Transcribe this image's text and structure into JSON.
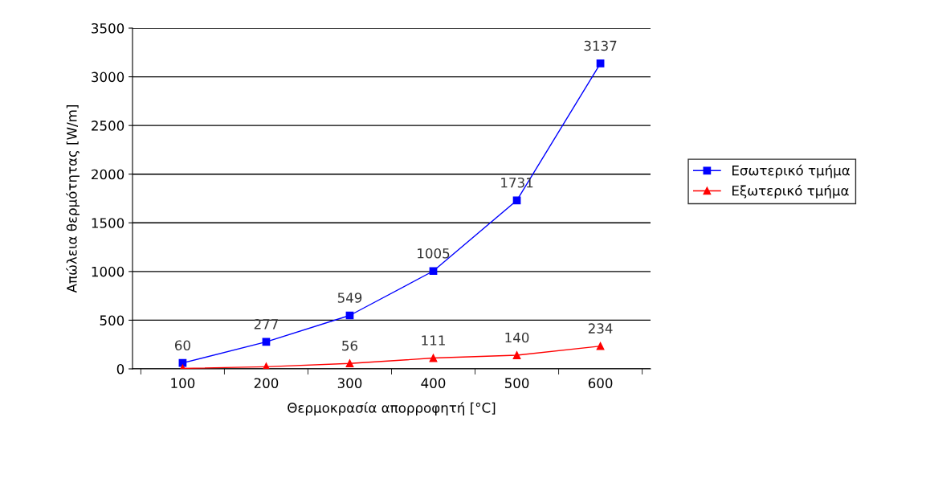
{
  "chart_data": {
    "type": "line",
    "xlabel": "Θερμοκρασία απορροφητή [°C]",
    "ylabel": "Απώλεια θερμότητας [W/m]",
    "categories": [
      "100",
      "200",
      "300",
      "400",
      "500",
      "600"
    ],
    "series": [
      {
        "name": "Εσωτερικό τμήμα",
        "color": "#0000ff",
        "marker": "square",
        "values": [
          60,
          277,
          549,
          1005,
          1731,
          3137
        ],
        "value_labels": [
          "60",
          "277",
          "549",
          "1005",
          "1731",
          "3137"
        ]
      },
      {
        "name": "Εξωτερικό τμήμα",
        "color": "#ff0000",
        "marker": "triangle",
        "values": [
          5,
          22,
          56,
          111,
          140,
          234
        ],
        "value_labels": [
          null,
          null,
          "56",
          "111",
          "140",
          "234"
        ]
      }
    ],
    "ylim": [
      0,
      3500
    ],
    "yticks": [
      0,
      500,
      1000,
      1500,
      2000,
      2500,
      3000,
      3500
    ],
    "grid": "y",
    "legend": "right"
  }
}
